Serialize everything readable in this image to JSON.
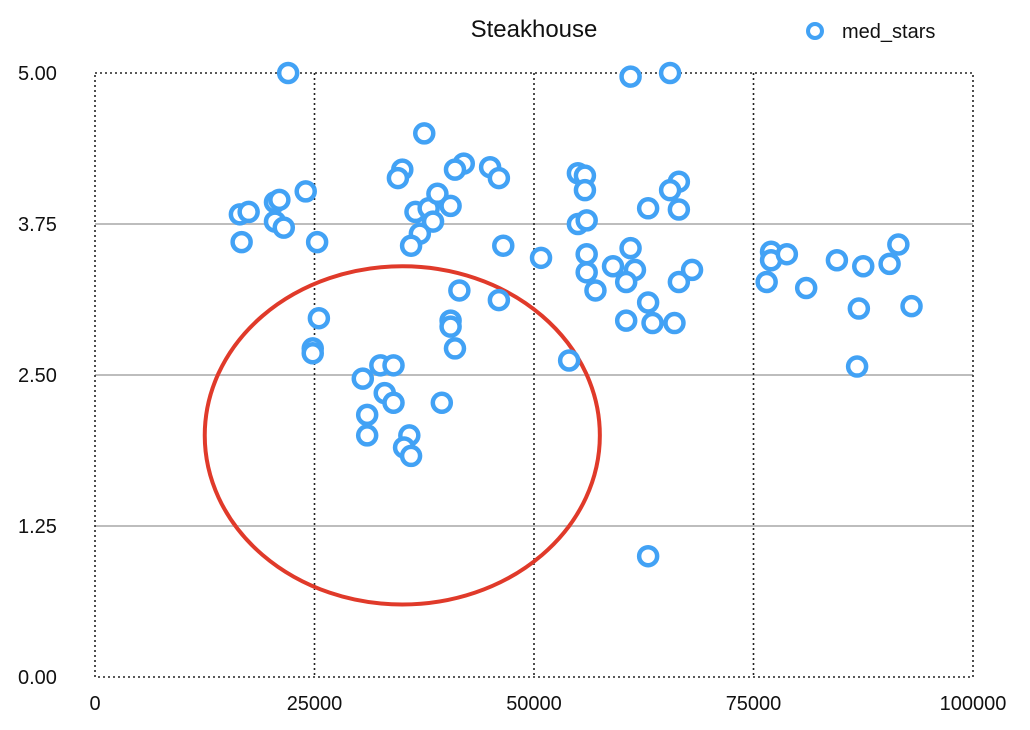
{
  "chart_data": {
    "type": "scatter",
    "title": "Steakhouse",
    "xlabel": "",
    "ylabel": "",
    "xlim": [
      0,
      100000
    ],
    "ylim": [
      0,
      5
    ],
    "x_ticks": [
      "0",
      "25000",
      "50000",
      "75000",
      "100000"
    ],
    "y_ticks": [
      "0.00",
      "1.25",
      "2.50",
      "3.75",
      "5.00"
    ],
    "grid": {
      "horizontal": true,
      "vertical": true
    },
    "legend": {
      "position": "top-right"
    },
    "series": [
      {
        "name": "med_stars",
        "color": "#42a2f5",
        "points": [
          [
            22000,
            5.0
          ],
          [
            61000,
            4.97
          ],
          [
            65500,
            5.0
          ],
          [
            37500,
            4.5
          ],
          [
            35000,
            4.2
          ],
          [
            34500,
            4.13
          ],
          [
            42000,
            4.25
          ],
          [
            41000,
            4.2
          ],
          [
            45000,
            4.22
          ],
          [
            46000,
            4.13
          ],
          [
            55000,
            4.17
          ],
          [
            55800,
            4.15
          ],
          [
            55800,
            4.03
          ],
          [
            66500,
            4.1
          ],
          [
            65500,
            4.03
          ],
          [
            16500,
            3.83
          ],
          [
            17500,
            3.85
          ],
          [
            20500,
            3.93
          ],
          [
            21000,
            3.95
          ],
          [
            24000,
            4.02
          ],
          [
            20500,
            3.77
          ],
          [
            21500,
            3.72
          ],
          [
            16700,
            3.6
          ],
          [
            25300,
            3.6
          ],
          [
            36500,
            3.85
          ],
          [
            38000,
            3.88
          ],
          [
            39000,
            4.0
          ],
          [
            40500,
            3.9
          ],
          [
            38500,
            3.77
          ],
          [
            37000,
            3.67
          ],
          [
            36000,
            3.57
          ],
          [
            46500,
            3.57
          ],
          [
            50800,
            3.47
          ],
          [
            55000,
            3.75
          ],
          [
            56000,
            3.78
          ],
          [
            63000,
            3.88
          ],
          [
            66500,
            3.87
          ],
          [
            56000,
            3.5
          ],
          [
            59000,
            3.4
          ],
          [
            61000,
            3.55
          ],
          [
            56000,
            3.35
          ],
          [
            61500,
            3.37
          ],
          [
            60500,
            3.27
          ],
          [
            57000,
            3.2
          ],
          [
            66500,
            3.27
          ],
          [
            68000,
            3.37
          ],
          [
            63000,
            3.1
          ],
          [
            60500,
            2.95
          ],
          [
            63500,
            2.93
          ],
          [
            66000,
            2.93
          ],
          [
            46000,
            3.12
          ],
          [
            41500,
            3.2
          ],
          [
            40500,
            2.95
          ],
          [
            40500,
            2.9
          ],
          [
            41000,
            2.72
          ],
          [
            25500,
            2.97
          ],
          [
            24800,
            2.72
          ],
          [
            24800,
            2.68
          ],
          [
            54000,
            2.62
          ],
          [
            77000,
            3.52
          ],
          [
            77000,
            3.45
          ],
          [
            78800,
            3.5
          ],
          [
            76500,
            3.27
          ],
          [
            81000,
            3.22
          ],
          [
            84500,
            3.45
          ],
          [
            87500,
            3.4
          ],
          [
            90500,
            3.42
          ],
          [
            91500,
            3.58
          ],
          [
            93000,
            3.07
          ],
          [
            87000,
            3.05
          ],
          [
            86800,
            2.57
          ],
          [
            32500,
            2.58
          ],
          [
            34000,
            2.58
          ],
          [
            30500,
            2.47
          ],
          [
            33000,
            2.35
          ],
          [
            34000,
            2.27
          ],
          [
            39500,
            2.27
          ],
          [
            31000,
            2.17
          ],
          [
            31000,
            2.0
          ],
          [
            35800,
            2.0
          ],
          [
            35200,
            1.9
          ],
          [
            36000,
            1.83
          ],
          [
            63000,
            1.0
          ]
        ]
      }
    ],
    "annotations": [
      {
        "type": "ellipse",
        "color": "#e03a2a",
        "center": [
          35000,
          2.0
        ],
        "rx": 22500,
        "ry": 1.4
      }
    ]
  }
}
